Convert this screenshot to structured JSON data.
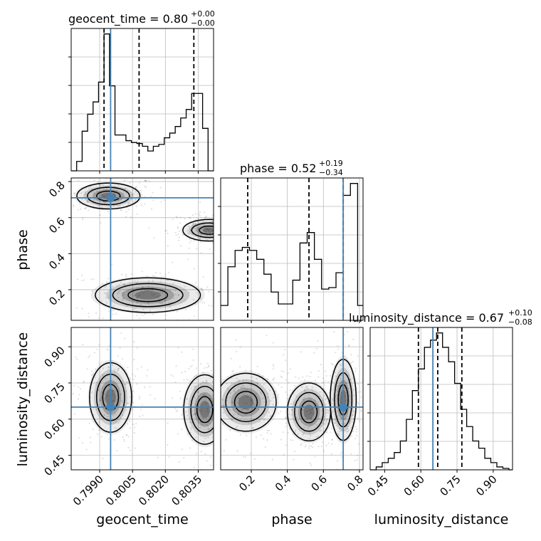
{
  "chart_data": {
    "type": "corner",
    "parameters": [
      "geocent_time",
      "phase",
      "luminosity_distance"
    ],
    "truths": {
      "geocent_time": 0.7995,
      "phase": 0.71,
      "luminosity_distance": 0.65
    },
    "colors": {
      "truth": "#4682b4",
      "line": "#000000",
      "grid": "#bdbdbd",
      "density": "#000000"
    },
    "titles": [
      {
        "parameter": "geocent_time",
        "text": "geocent_time = 0.80",
        "upper": "+0.00",
        "lower": "−0.00"
      },
      {
        "parameter": "phase",
        "text": "phase = 0.52",
        "upper": "+0.19",
        "lower": "−0.34"
      },
      {
        "parameter": "luminosity_distance",
        "text": "luminosity_distance = 0.67",
        "upper": "+0.10",
        "lower": "−0.08"
      }
    ],
    "axis_labels": {
      "x": [
        "geocent_time",
        "phase",
        "luminosity_distance"
      ],
      "y": [
        "phase",
        "luminosity_distance"
      ]
    },
    "ranges": {
      "geocent_time": [
        0.7977,
        0.8042
      ],
      "phase": [
        0.03,
        0.82
      ],
      "luminosity_distance": [
        0.39,
        0.98
      ]
    },
    "ticks": {
      "geocent_time": [
        "0.7990",
        "0.8005",
        "0.8020",
        "0.8035"
      ],
      "phase": [
        "0.2",
        "0.4",
        "0.6",
        "0.8"
      ],
      "luminosity_distance": [
        "0.45",
        "0.60",
        "0.75",
        "0.90"
      ]
    },
    "grid": true,
    "histograms": [
      {
        "parameter": "geocent_time",
        "edges": [
          0.7977,
          0.79795,
          0.7982,
          0.79845,
          0.7987,
          0.79895,
          0.7992,
          0.79945,
          0.7997,
          0.79995,
          0.8002,
          0.80045,
          0.8007,
          0.80095,
          0.8012,
          0.80145,
          0.8017,
          0.80195,
          0.8022,
          0.80245,
          0.8027,
          0.80295,
          0.8032,
          0.80345,
          0.8037,
          0.80395,
          0.8042
        ],
        "counts": [
          0,
          10,
          42,
          60,
          73,
          94,
          145,
          90,
          38,
          38,
          32,
          30,
          29,
          26,
          21,
          26,
          28,
          35,
          40,
          47,
          56,
          65,
          82,
          82,
          45,
          0
        ],
        "quantiles": [
          0.7992,
          0.8008,
          0.8033
        ]
      },
      {
        "parameter": "phase",
        "edges": [
          0.03,
          0.07,
          0.11,
          0.15,
          0.19,
          0.23,
          0.27,
          0.31,
          0.35,
          0.39,
          0.43,
          0.47,
          0.51,
          0.55,
          0.59,
          0.63,
          0.67,
          0.71,
          0.75,
          0.79,
          0.82
        ],
        "counts": [
          10,
          36,
          47,
          49,
          47,
          41,
          31,
          19,
          11,
          11,
          27,
          52,
          59,
          41,
          21,
          22,
          32,
          84,
          92,
          10
        ],
        "quantiles": [
          0.18,
          0.52,
          0.71
        ]
      },
      {
        "parameter": "luminosity_distance",
        "edges": [
          0.39,
          0.415,
          0.44,
          0.465,
          0.49,
          0.515,
          0.54,
          0.565,
          0.59,
          0.615,
          0.64,
          0.665,
          0.69,
          0.715,
          0.74,
          0.765,
          0.79,
          0.815,
          0.84,
          0.865,
          0.89,
          0.915,
          0.94,
          0.965,
          0.98
        ],
        "counts": [
          0,
          2,
          5,
          8,
          12,
          20,
          35,
          55,
          70,
          85,
          90,
          95,
          85,
          75,
          60,
          42,
          30,
          20,
          15,
          8,
          5,
          2,
          1,
          0
        ],
        "quantiles": [
          0.59,
          0.67,
          0.77
        ]
      }
    ],
    "contours_2d": [
      {
        "x": "geocent_time",
        "y": "phase",
        "modes": [
          {
            "center": [
              0.7994,
              0.72
            ],
            "spread": [
              0.0006,
              0.03
            ]
          },
          {
            "center": [
              0.804,
              0.53
            ],
            "spread": [
              0.0005,
              0.025
            ]
          },
          {
            "center": [
              0.8012,
              0.17
            ],
            "spread": [
              0.001,
              0.04
            ]
          }
        ]
      },
      {
        "x": "geocent_time",
        "y": "luminosity_distance",
        "modes": [
          {
            "center": [
              0.7995,
              0.69
            ],
            "spread": [
              0.0004,
              0.06
            ]
          },
          {
            "center": [
              0.8038,
              0.64
            ],
            "spread": [
              0.0004,
              0.06
            ]
          }
        ]
      },
      {
        "x": "phase",
        "y": "luminosity_distance",
        "modes": [
          {
            "center": [
              0.17,
              0.67
            ],
            "spread": [
              0.07,
              0.05
            ]
          },
          {
            "center": [
              0.52,
              0.63
            ],
            "spread": [
              0.05,
              0.05
            ]
          },
          {
            "center": [
              0.71,
              0.68
            ],
            "spread": [
              0.03,
              0.07
            ]
          }
        ]
      }
    ]
  }
}
